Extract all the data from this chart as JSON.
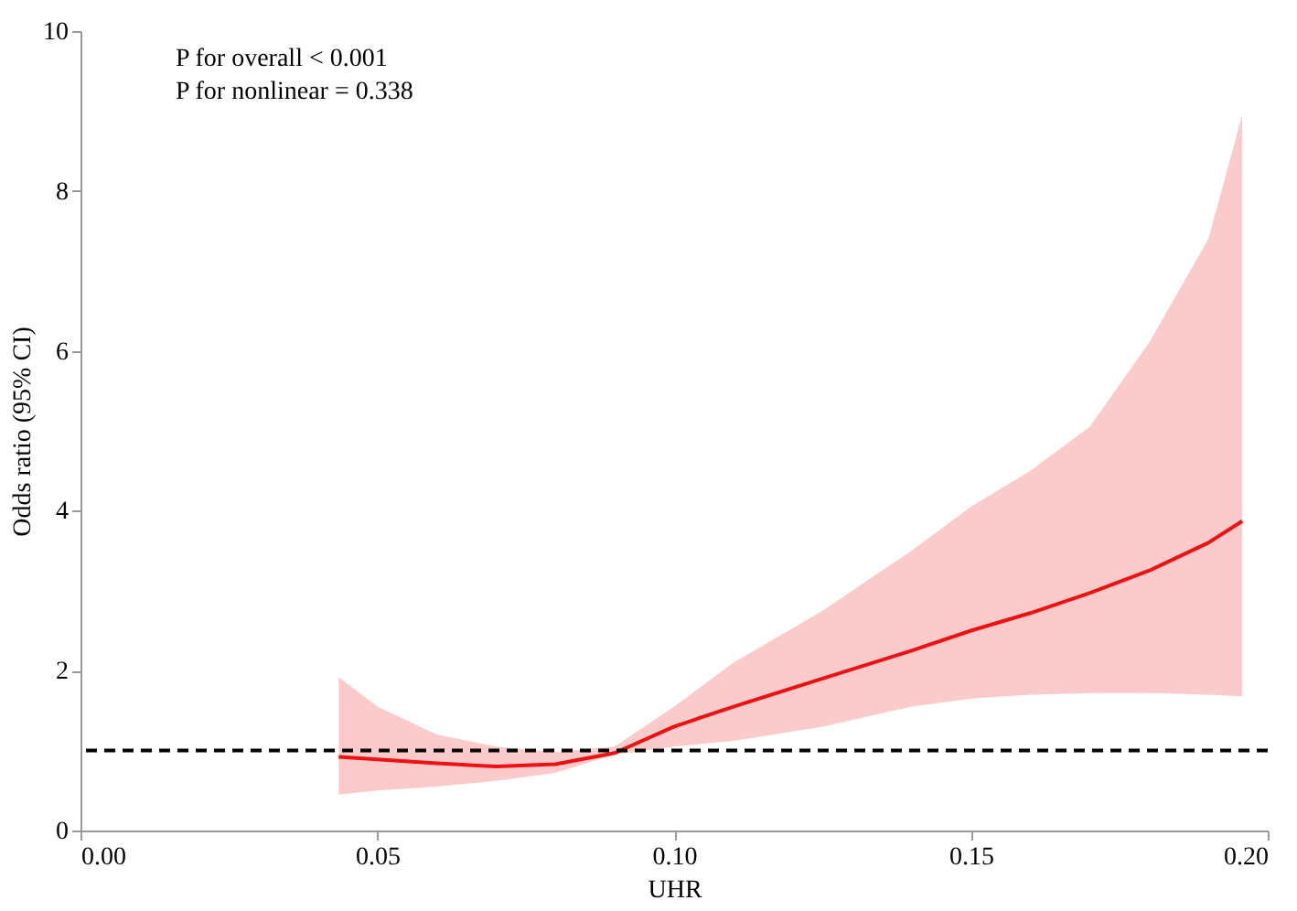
{
  "chart_data": {
    "type": "line",
    "xlabel": "UHR",
    "ylabel": "Odds ratio (95% CI)",
    "annotations": [
      "P for overall < 0.001",
      "P for nonlinear = 0.338"
    ],
    "x": [
      0.0435,
      0.05,
      0.06,
      0.07,
      0.08,
      0.09,
      0.1,
      0.11,
      0.125,
      0.14,
      0.15,
      0.16,
      0.17,
      0.18,
      0.19,
      0.1957
    ],
    "series": [
      {
        "color": "#ee1111",
        "values": [
          0.92,
          0.89,
          0.84,
          0.8,
          0.83,
          0.97,
          1.3,
          1.55,
          1.9,
          2.25,
          2.5,
          2.72,
          2.97,
          3.25,
          3.6,
          3.87
        ],
        "lower": [
          0.45,
          0.5,
          0.55,
          0.62,
          0.72,
          0.95,
          1.05,
          1.12,
          1.3,
          1.55,
          1.65,
          1.7,
          1.72,
          1.72,
          1.7,
          1.68
        ],
        "upper": [
          1.92,
          1.55,
          1.2,
          1.05,
          0.98,
          1.05,
          1.55,
          2.1,
          2.75,
          3.5,
          4.05,
          4.5,
          5.05,
          6.1,
          7.4,
          8.95
        ]
      }
    ],
    "xlim": [
      0,
      0.2
    ],
    "xticks": [
      {
        "value": 0,
        "label": "0.00"
      },
      0.05,
      {
        "value": 0.1,
        "label": "0.10"
      },
      0.15,
      {
        "value": 0.2,
        "label": "0.20"
      }
    ],
    "ylim": [
      0,
      10
    ],
    "yticks": [
      0,
      2,
      4,
      6,
      8,
      10
    ],
    "ref_lines": [
      {
        "axis": "y",
        "value": 1,
        "color": "#000000",
        "line_style": "dashed"
      }
    ],
    "grid": false,
    "line_style": "solid",
    "marker": "none"
  }
}
